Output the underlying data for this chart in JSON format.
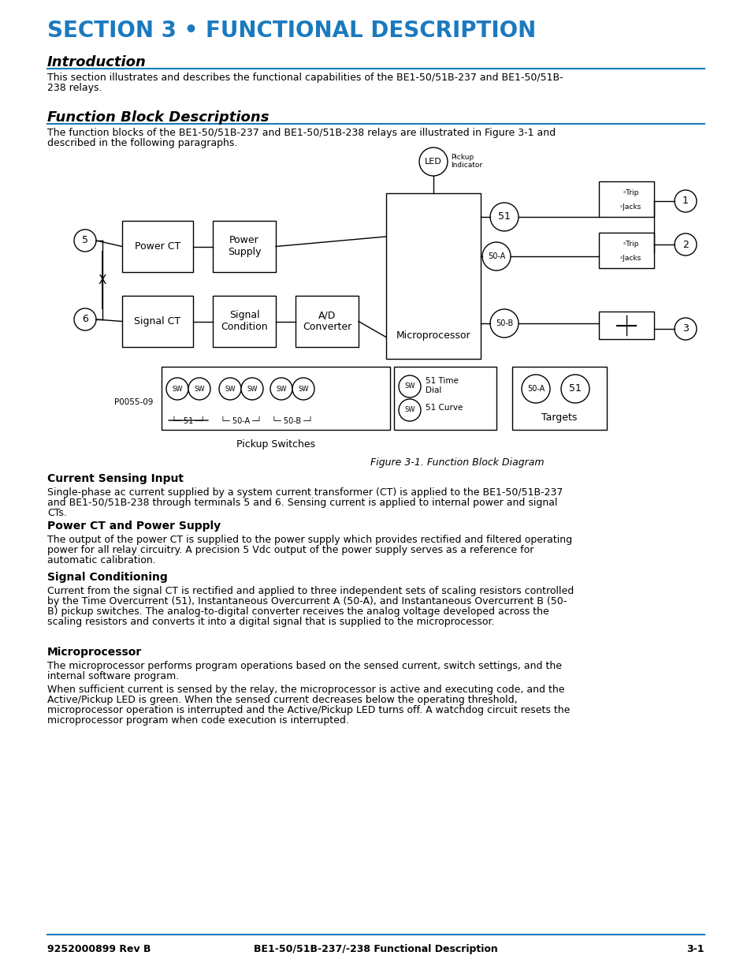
{
  "page_bg": "#ffffff",
  "blue_color": "#1a7abf",
  "title": "SECTION 3 • FUNCTIONAL DESCRIPTION",
  "intro_heading": "Introduction",
  "intro_text": "This section illustrates and describes the functional capabilities of the BE1-50/51B-237 and BE1-50/51B-\n238 relays.",
  "fbd_heading": "Function Block Descriptions",
  "fbd_text": "The function blocks of the BE1-50/51B-237 and BE1-50/51B-238 relays are illustrated in Figure 3-1 and\ndescribed in the following paragraphs.",
  "fig_caption": "Figure 3-1. Function Block Diagram",
  "section_current_heading": "Current Sensing Input",
  "section_current_text": "Single-phase ac current supplied by a system current transformer (CT) is applied to the BE1-50/51B-237\nand BE1-50/51B-238 through terminals 5 and 6. Sensing current is applied to internal power and signal\nCTs.",
  "section_power_heading": "Power CT and Power Supply",
  "section_power_text": "The output of the power CT is supplied to the power supply which provides rectified and filtered operating\npower for all relay circuitry. A precision 5 Vdc output of the power supply serves as a reference for\nautomatic calibration.",
  "section_signal_heading": "Signal Conditioning",
  "section_signal_text": "Current from the signal CT is rectified and applied to three independent sets of scaling resistors controlled\nby the Time Overcurrent (51), Instantaneous Overcurrent A (50-A), and Instantaneous Overcurrent B (50-\nB) pickup switches. The analog-to-digital converter receives the analog voltage developed across the\nscaling resistors and converts it into a digital signal that is supplied to the microprocessor.",
  "section_micro_heading": "Microprocessor",
  "section_micro_text1": "The microprocessor performs program operations based on the sensed current, switch settings, and the\ninternal software program.",
  "section_micro_text2": "When sufficient current is sensed by the relay, the microprocessor is active and executing code, and the\nActive/Pickup LED is green. When the sensed current decreases below the operating threshold,\nmicroprocessor operation is interrupted and the Active/Pickup LED turns off. A watchdog circuit resets the\nmicroprocessor program when code execution is interrupted.",
  "footer_left": "9252000899 Rev B",
  "footer_center": "BE1-50/51B-237/-238 Functional Description",
  "footer_right": "3-1"
}
